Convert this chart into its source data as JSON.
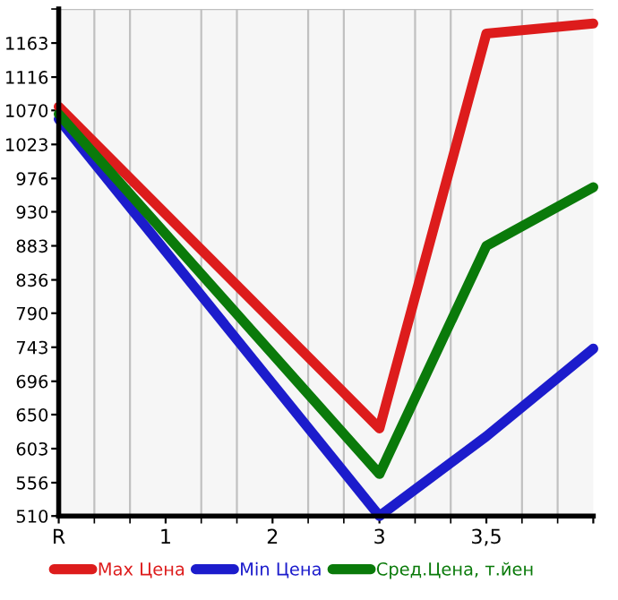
{
  "chart_data": {
    "type": "line",
    "categories": [
      "R",
      "1",
      "2",
      "3",
      "3,5",
      null
    ],
    "series": [
      {
        "name": "Max Цена",
        "color": "#dd1c1c",
        "values": [
          1075,
          null,
          null,
          631,
          1176,
          1190
        ]
      },
      {
        "name": "Min Цена",
        "color": "#1c1ccc",
        "values": [
          1058,
          null,
          null,
          510,
          620,
          741
        ]
      },
      {
        "name": "Сред.Цена, т.йен",
        "color": "#0a7a0a",
        "values": [
          1065,
          null,
          null,
          568,
          883,
          964
        ]
      }
    ],
    "ylim": [
      510,
      1210
    ],
    "yticks": [
      510,
      556,
      603,
      650,
      696,
      743,
      790,
      836,
      883,
      930,
      976,
      1023,
      1070,
      1116,
      1163
    ],
    "grid": true,
    "legend": "bottom",
    "marker": "none",
    "line_style": "solid"
  }
}
